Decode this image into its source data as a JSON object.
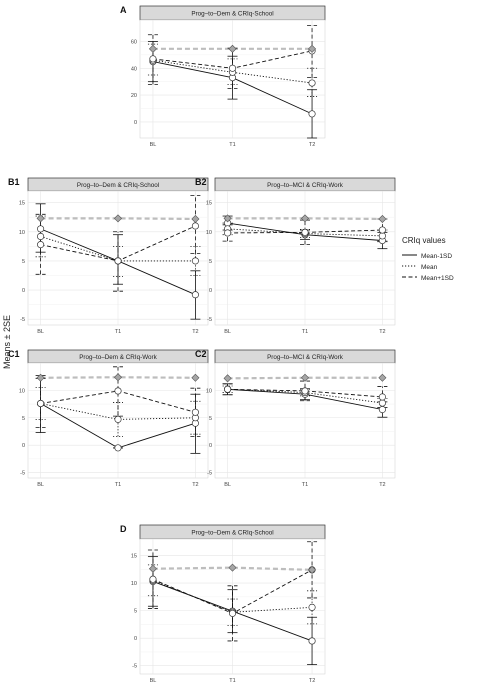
{
  "figure": {
    "y_axis_label": "Means ± 2SE",
    "legend": {
      "title": "CRIq values",
      "entries": [
        {
          "label": "Mean-1SD",
          "linestyle": "solid"
        },
        {
          "label": "Mean",
          "linestyle": "dotted"
        },
        {
          "label": "Mean+1SD",
          "linestyle": "dashed"
        }
      ]
    }
  },
  "colors": {
    "panel_background": "#ffffff",
    "grid_major": "#e6e6e6",
    "grid_minor": "#f2f2f2",
    "strip_background": "#d9d9d9",
    "strip_border": "#333333",
    "series_line": "#111111",
    "overall_mean_line": "#bdbdbd",
    "diamond_fill": "#a6a6a6",
    "circle_fill": "#ffffff"
  },
  "chart_data": [
    {
      "panel": "A",
      "type": "line",
      "title": "Prog–to–Dem & CRIq-School",
      "categories": [
        "BL",
        "T1",
        "T2"
      ],
      "ylim": [
        -12,
        76
      ],
      "yticks": [
        0,
        20,
        40,
        60
      ],
      "grid": true,
      "series": [
        {
          "name": "Mean-1SD",
          "values": [
            45,
            33,
            6
          ],
          "se_low": [
            30,
            17,
            -12
          ],
          "se_high": [
            60,
            49,
            24
          ]
        },
        {
          "name": "Mean",
          "values": [
            46,
            37,
            29
          ],
          "se_low": [
            35,
            28,
            19
          ],
          "se_high": [
            58,
            47,
            40
          ]
        },
        {
          "name": "Mean+1SD",
          "values": [
            47,
            40,
            53
          ],
          "se_low": [
            28,
            25,
            33
          ],
          "se_high": [
            65,
            55,
            72
          ]
        }
      ],
      "overall_mean": [
        54.5,
        54.5,
        54.5
      ]
    },
    {
      "panel": "B1",
      "type": "line",
      "title": "Prog–to–Dem & CRIq-School",
      "categories": [
        "BL",
        "T1",
        "T2"
      ],
      "ylim": [
        -6,
        17
      ],
      "yticks": [
        -5,
        0,
        5,
        10,
        15
      ],
      "grid": true,
      "series": [
        {
          "name": "Mean-1SD",
          "values": [
            10.5,
            5,
            -0.8
          ],
          "se_low": [
            6.5,
            1,
            -5
          ],
          "se_high": [
            14.8,
            9.5,
            3.3
          ]
        },
        {
          "name": "Mean",
          "values": [
            9.2,
            5,
            5
          ],
          "se_low": [
            5.7,
            2.3,
            2.5
          ],
          "se_high": [
            12.7,
            7.5,
            7.5
          ]
        },
        {
          "name": "Mean+1SD",
          "values": [
            7.8,
            5,
            11
          ],
          "se_low": [
            2.7,
            -0.2,
            6.3
          ],
          "se_high": [
            13,
            10,
            16.2
          ]
        }
      ],
      "overall_mean": [
        12.3,
        12.3,
        12.2
      ]
    },
    {
      "panel": "B2",
      "type": "line",
      "title": "Prog–to–MCI & CRIq-Work",
      "categories": [
        "BL",
        "T1",
        "T2"
      ],
      "ylim": [
        -6,
        17
      ],
      "yticks": [
        -5,
        0,
        5,
        10,
        15
      ],
      "grid": true,
      "series": [
        {
          "name": "Mean-1SD",
          "values": [
            11.5,
            9.5,
            8.5
          ],
          "se_low": [
            10.3,
            8.7,
            7.1
          ],
          "se_high": [
            12.7,
            10.3,
            9.9
          ]
        },
        {
          "name": "Mean",
          "values": [
            10.5,
            9.7,
            9.3
          ],
          "se_low": [
            9.5,
            9,
            8.3
          ],
          "se_high": [
            11.5,
            10.4,
            10.3
          ]
        },
        {
          "name": "Mean+1SD",
          "values": [
            9.8,
            9.9,
            10.3
          ],
          "se_low": [
            8.4,
            7.8,
            8.4
          ],
          "se_high": [
            11.2,
            12,
            12.2
          ]
        }
      ],
      "overall_mean": [
        12.3,
        12.3,
        12.2
      ]
    },
    {
      "panel": "C1",
      "type": "line",
      "title": "Prog–to–Dem & CRIq-Work",
      "categories": [
        "BL",
        "T1",
        "T2"
      ],
      "ylim": [
        -6,
        15
      ],
      "yticks": [
        -5,
        0,
        5,
        10
      ],
      "grid": true,
      "series": [
        {
          "name": "Mean-1SD",
          "values": [
            7.6,
            -0.5,
            4
          ],
          "se_low": [
            2.3,
            -0.5,
            -1.5
          ],
          "se_high": [
            12.7,
            -0.5,
            9.3
          ]
        },
        {
          "name": "Mean",
          "values": [
            7.6,
            4.7,
            5
          ],
          "se_low": [
            4.7,
            1.6,
            2
          ],
          "se_high": [
            10.5,
            7.8,
            8
          ]
        },
        {
          "name": "Mean+1SD",
          "values": [
            7.6,
            9.9,
            6
          ],
          "se_low": [
            3.2,
            5.3,
            1.6
          ],
          "se_high": [
            12.2,
            14.3,
            10.4
          ]
        }
      ],
      "overall_mean": [
        12.3,
        12.4,
        12.3
      ]
    },
    {
      "panel": "C2",
      "type": "line",
      "title": "Prog–to–MCI & CRIq-Work",
      "categories": [
        "BL",
        "T1",
        "T2"
      ],
      "ylim": [
        -6,
        15
      ],
      "yticks": [
        -5,
        0,
        5,
        10
      ],
      "grid": true,
      "series": [
        {
          "name": "Mean-1SD",
          "values": [
            10.2,
            9.3,
            6.5
          ],
          "se_low": [
            9.2,
            8.3,
            5.1
          ],
          "se_high": [
            11.2,
            10.3,
            7.9
          ]
        },
        {
          "name": "Mean",
          "values": [
            10.2,
            9.6,
            7.7
          ],
          "se_low": [
            9.6,
            9,
            6.9
          ],
          "se_high": [
            10.8,
            10.2,
            8.5
          ]
        },
        {
          "name": "Mean+1SD",
          "values": [
            10.2,
            9.9,
            8.8
          ],
          "se_low": [
            9.2,
            8.1,
            6.9
          ],
          "se_high": [
            11.2,
            11.7,
            10.7
          ]
        }
      ],
      "overall_mean": [
        12.2,
        12.3,
        12.3
      ]
    },
    {
      "panel": "D",
      "type": "line",
      "title": "Prog–to–Dem & CRIq-School",
      "categories": [
        "BL",
        "T1",
        "T2"
      ],
      "ylim": [
        -6.5,
        18
      ],
      "yticks": [
        -5,
        0,
        5,
        10,
        15
      ],
      "grid": true,
      "series": [
        {
          "name": "Mean-1SD",
          "values": [
            10.3,
            4.9,
            -0.5
          ],
          "se_low": [
            5.8,
            1,
            -4.8
          ],
          "se_high": [
            14.8,
            8.8,
            3.8
          ]
        },
        {
          "name": "Mean",
          "values": [
            10.5,
            4.7,
            5.6
          ],
          "se_low": [
            7.7,
            2.3,
            2.6
          ],
          "se_high": [
            13.3,
            7.1,
            8.6
          ]
        },
        {
          "name": "Mean+1SD",
          "values": [
            10.7,
            4.5,
            12.4
          ],
          "se_low": [
            5.4,
            -0.5,
            7.3
          ],
          "se_high": [
            16,
            9.5,
            17.5
          ]
        }
      ],
      "overall_mean": [
        12.6,
        12.8,
        12.4
      ]
    }
  ]
}
